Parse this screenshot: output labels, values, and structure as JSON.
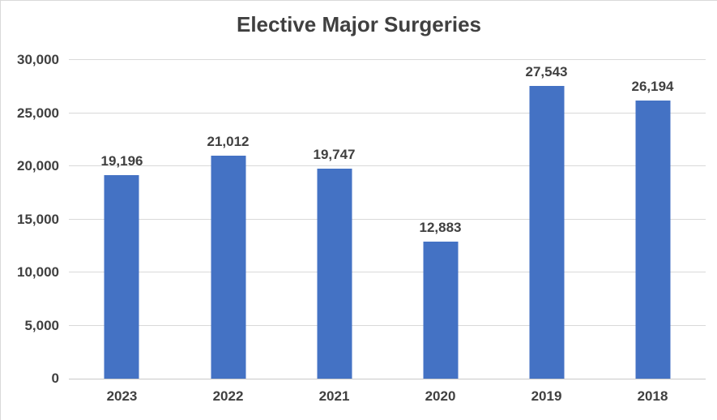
{
  "chart_data": {
    "type": "bar",
    "title": "Elective Major Surgeries",
    "categories": [
      "2023",
      "2022",
      "2021",
      "2020",
      "2019",
      "2018"
    ],
    "values": [
      19196,
      21012,
      19747,
      12883,
      27543,
      26194
    ],
    "value_labels": [
      "19,196",
      "21,012",
      "19,747",
      "12,883",
      "27,543",
      "26,194"
    ],
    "y_ticks": [
      0,
      5000,
      10000,
      15000,
      20000,
      25000,
      30000
    ],
    "y_tick_labels": [
      "0",
      "5,000",
      "10,000",
      "15,000",
      "20,000",
      "25,000",
      "30,000"
    ],
    "ylim": [
      0,
      30000
    ],
    "xlabel": "",
    "ylabel": "",
    "grid": true,
    "legend": false,
    "colors": {
      "bar": "#4472C4",
      "gridline": "#D9D9D9",
      "axis_line": "#C9C9C9",
      "text": "#404040",
      "background": "#FFFFFF",
      "frame_border": "#D9D9D9"
    }
  }
}
